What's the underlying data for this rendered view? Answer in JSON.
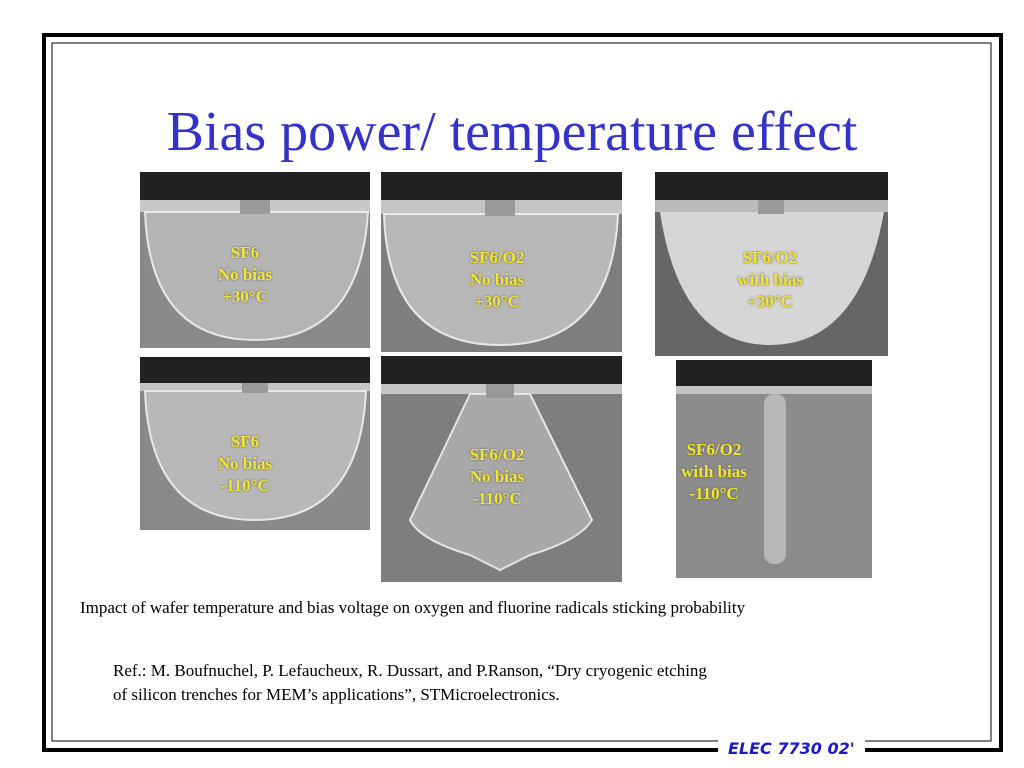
{
  "slide": {
    "title": "Bias power/ temperature effect",
    "images": [
      {
        "lines": [
          "SF6",
          "No bias",
          "+30°C"
        ]
      },
      {
        "lines": [
          "SF6/O2",
          "No bias",
          "+30°C"
        ]
      },
      {
        "lines": [
          "SF6/O2",
          "with bias",
          "+30°C"
        ]
      },
      {
        "lines": [
          "SF6",
          "No bias",
          "-110°C"
        ]
      },
      {
        "lines": [
          "SF6/O2",
          "No bias",
          "-110°C"
        ]
      },
      {
        "lines": [
          "SF6/O2",
          "with bias",
          "-110°C"
        ]
      }
    ],
    "caption": "Impact of wafer temperature and bias voltage on oxygen and fluorine radicals sticking probability",
    "reference": [
      "Ref.: M. Boufnuchel, P. Lefaucheux, R. Dussart, and P.Ranson, “Dry cryogenic etching",
      "of silicon trenches for MEM’s applications”, STMicroelectronics."
    ],
    "footer": "ELEC 7730 02'"
  }
}
